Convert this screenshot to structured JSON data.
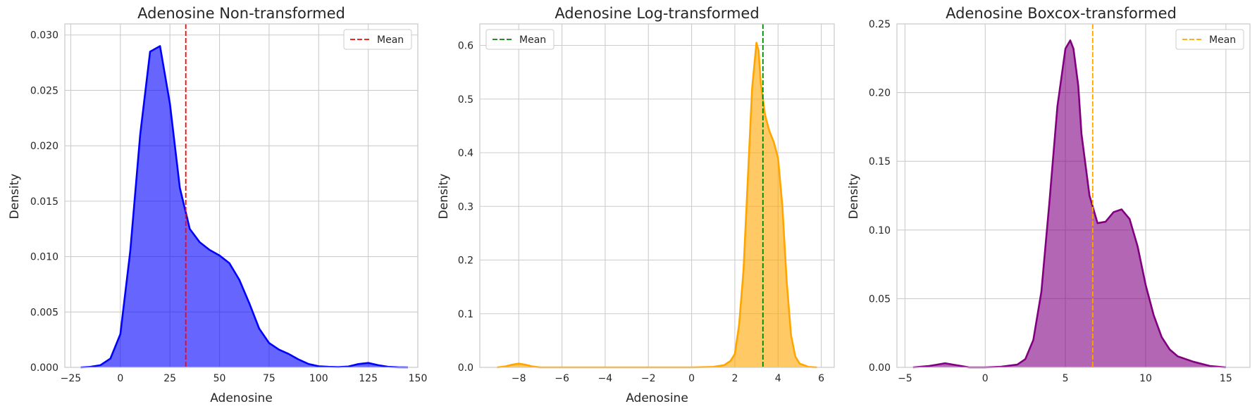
{
  "chart_data": [
    {
      "type": "area",
      "title": "Adenosine Non-transformed",
      "xlabel": "Adenosine",
      "ylabel": "Density",
      "xlim": [
        -28,
        150
      ],
      "ylim": [
        0,
        0.031
      ],
      "xticks": [
        -25,
        0,
        25,
        50,
        75,
        100,
        125,
        150
      ],
      "xtick_labels": [
        "−25",
        "0",
        "25",
        "50",
        "75",
        "100",
        "125",
        "150"
      ],
      "yticks": [
        0,
        0.005,
        0.01,
        0.015,
        0.02,
        0.025,
        0.03
      ],
      "ytick_labels": [
        "0.000",
        "0.005",
        "0.010",
        "0.015",
        "0.020",
        "0.025",
        "0.030"
      ],
      "grid": true,
      "fill_color": "#0000ff",
      "mean_line": {
        "x": 33,
        "color": "#ff0000",
        "label": "Mean"
      },
      "legend_position": "top-right",
      "series": [
        {
          "x": [
            -20,
            -15,
            -10,
            -5,
            0,
            5,
            10,
            15,
            20,
            25,
            30,
            35,
            40,
            45,
            50,
            55,
            60,
            65,
            70,
            75,
            80,
            85,
            90,
            95,
            100,
            105,
            110,
            115,
            120,
            125,
            130,
            135,
            140,
            145
          ],
          "values": [
            0,
            5e-05,
            0.0002,
            0.0008,
            0.003,
            0.0105,
            0.021,
            0.0285,
            0.029,
            0.0238,
            0.0162,
            0.0125,
            0.0113,
            0.0106,
            0.0101,
            0.0094,
            0.0079,
            0.0058,
            0.0035,
            0.0022,
            0.0016,
            0.0012,
            0.0007,
            0.0003,
            0.0001,
            5e-05,
            3e-05,
            8e-05,
            0.0003,
            0.0004,
            0.0002,
            5e-05,
            1e-05,
            0
          ]
        }
      ]
    },
    {
      "type": "area",
      "title": "Adenosine Log-transformed",
      "xlabel": "Adenosine",
      "ylabel": "Density",
      "xlim": [
        -9.8,
        6.6
      ],
      "ylim": [
        0,
        0.64
      ],
      "xticks": [
        -8,
        -6,
        -4,
        -2,
        0,
        2,
        4,
        6
      ],
      "xtick_labels": [
        "−8",
        "−6",
        "−4",
        "−2",
        "0",
        "2",
        "4",
        "6"
      ],
      "yticks": [
        0,
        0.1,
        0.2,
        0.3,
        0.4,
        0.5,
        0.6
      ],
      "ytick_labels": [
        "0.0",
        "0.1",
        "0.2",
        "0.3",
        "0.4",
        "0.5",
        "0.6"
      ],
      "grid": true,
      "fill_color": "#ffa500",
      "mean_line": {
        "x": 3.3,
        "color": "#008000",
        "label": "Mean"
      },
      "legend_position": "top-left",
      "series": [
        {
          "x": [
            -9,
            -8.6,
            -8.3,
            -8,
            -7.7,
            -7.4,
            -7,
            -6,
            -4,
            -2,
            0,
            1,
            1.5,
            1.8,
            2,
            2.2,
            2.4,
            2.6,
            2.8,
            3,
            3.1,
            3.2,
            3.4,
            3.6,
            3.8,
            4,
            4.2,
            4.4,
            4.6,
            4.8,
            5,
            5.4,
            5.8
          ],
          "values": [
            0,
            0.002,
            0.005,
            0.007,
            0.005,
            0.002,
            0,
            0,
            0,
            0,
            0,
            0.001,
            0.004,
            0.012,
            0.025,
            0.08,
            0.18,
            0.35,
            0.52,
            0.605,
            0.59,
            0.53,
            0.47,
            0.44,
            0.42,
            0.39,
            0.3,
            0.16,
            0.06,
            0.02,
            0.007,
            0.001,
            0
          ]
        }
      ]
    },
    {
      "type": "area",
      "title": "Adenosine Boxcox-transformed",
      "xlabel": "",
      "ylabel": "Density",
      "xlim": [
        -5.5,
        16.5
      ],
      "ylim": [
        0,
        0.25
      ],
      "xticks": [
        -5,
        0,
        5,
        10,
        15
      ],
      "xtick_labels": [
        "−5",
        "0",
        "5",
        "10",
        "15"
      ],
      "yticks": [
        0,
        0.05,
        0.1,
        0.15,
        0.2,
        0.25
      ],
      "ytick_labels": [
        "0.00",
        "0.05",
        "0.10",
        "0.15",
        "0.20",
        "0.25"
      ],
      "grid": true,
      "fill_color": "#800080",
      "mean_line": {
        "x": 6.7,
        "color": "#ffa500",
        "label": "Mean"
      },
      "legend_position": "top-right",
      "series": [
        {
          "x": [
            -4.5,
            -3.5,
            -3,
            -2.5,
            -2,
            -1.5,
            -1,
            0,
            1,
            2,
            2.5,
            3,
            3.5,
            4,
            4.5,
            5,
            5.3,
            5.5,
            5.8,
            6,
            6.5,
            7,
            7.5,
            8,
            8.5,
            9,
            9.5,
            10,
            10.5,
            11,
            11.5,
            12,
            13,
            14,
            15
          ],
          "values": [
            0,
            0.001,
            0.002,
            0.003,
            0.002,
            0.001,
            0,
            0,
            0.0005,
            0.002,
            0.006,
            0.02,
            0.055,
            0.12,
            0.19,
            0.232,
            0.238,
            0.232,
            0.205,
            0.17,
            0.125,
            0.105,
            0.106,
            0.113,
            0.115,
            0.108,
            0.088,
            0.06,
            0.038,
            0.022,
            0.013,
            0.008,
            0.004,
            0.001,
            0
          ]
        }
      ]
    }
  ]
}
